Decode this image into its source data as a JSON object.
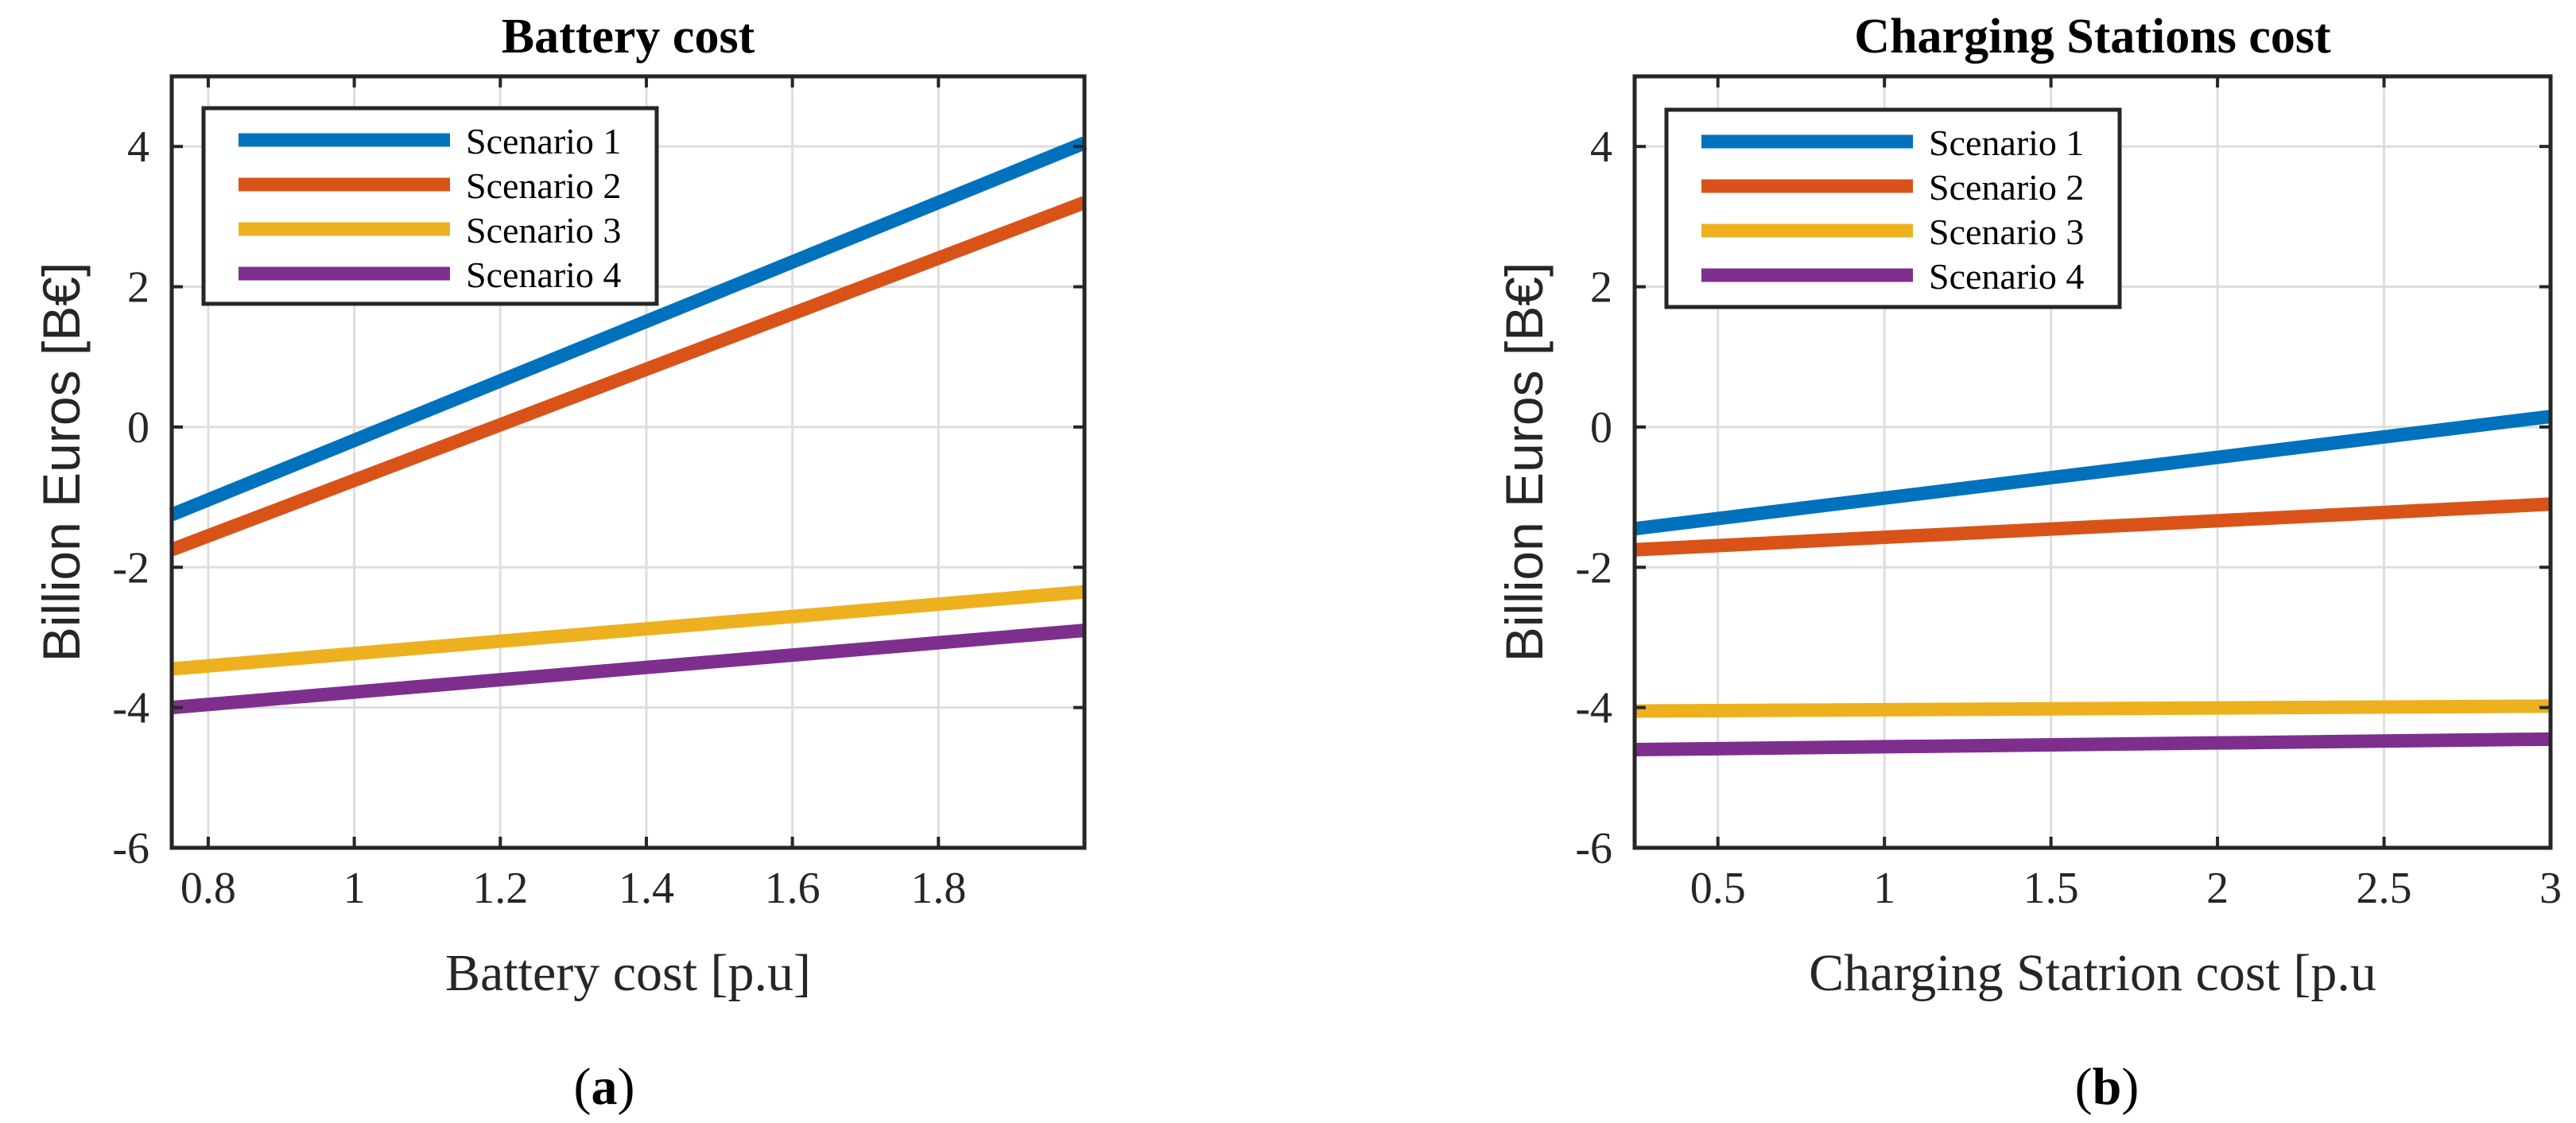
{
  "chart_data": [
    {
      "type": "line",
      "panel_label": "a",
      "title": "Battery cost",
      "xlabel": "Battery cost [p.u]",
      "ylabel": "Billion Euros [B€]",
      "xlim": [
        0.75,
        2.0
      ],
      "ylim": [
        -6,
        5
      ],
      "xticks": [
        0.8,
        1,
        1.2,
        1.4,
        1.6,
        1.8
      ],
      "xtick_labels": [
        "0.8",
        "1",
        "1.2",
        "1.4",
        "1.6",
        "1.8"
      ],
      "yticks": [
        -6,
        -4,
        -2,
        0,
        2,
        4
      ],
      "ytick_labels": [
        "-6",
        "-4",
        "-2",
        "0",
        "2",
        "4"
      ],
      "grid": true,
      "legend_location": "top-left",
      "series": [
        {
          "name": "Scenario 1",
          "color": "#0072BD",
          "x": [
            0.75,
            2.0
          ],
          "y": [
            -1.25,
            4.05
          ]
        },
        {
          "name": "Scenario 2",
          "color": "#D95319",
          "x": [
            0.75,
            2.0
          ],
          "y": [
            -1.75,
            3.2
          ]
        },
        {
          "name": "Scenario 3",
          "color": "#EDB120",
          "x": [
            0.75,
            2.0
          ],
          "y": [
            -3.45,
            -2.35
          ]
        },
        {
          "name": "Scenario 4",
          "color": "#7E2F8E",
          "x": [
            0.75,
            2.0
          ],
          "y": [
            -4.0,
            -2.9
          ]
        }
      ]
    },
    {
      "type": "line",
      "panel_label": "b",
      "title": "Charging Stations cost",
      "xlabel": "Charging Statrion cost [p.u",
      "ylabel": "Billion Euros [B€]",
      "xlim": [
        0.25,
        3.0
      ],
      "ylim": [
        -6,
        5
      ],
      "xticks": [
        0.5,
        1,
        1.5,
        2,
        2.5,
        3
      ],
      "xtick_labels": [
        "0.5",
        "1",
        "1.5",
        "2",
        "2.5",
        "3"
      ],
      "yticks": [
        -6,
        -4,
        -2,
        0,
        2,
        4
      ],
      "ytick_labels": [
        "-6",
        "-4",
        "-2",
        "0",
        "2",
        "4"
      ],
      "grid": true,
      "legend_location": "top-left",
      "series": [
        {
          "name": "Scenario 1",
          "color": "#0072BD",
          "x": [
            0.25,
            3.0
          ],
          "y": [
            -1.45,
            0.15
          ]
        },
        {
          "name": "Scenario 2",
          "color": "#D95319",
          "x": [
            0.25,
            3.0
          ],
          "y": [
            -1.75,
            -1.1
          ]
        },
        {
          "name": "Scenario 3",
          "color": "#EDB120",
          "x": [
            0.25,
            3.0
          ],
          "y": [
            -4.05,
            -3.98
          ]
        },
        {
          "name": "Scenario 4",
          "color": "#7E2F8E",
          "x": [
            0.25,
            3.0
          ],
          "y": [
            -4.6,
            -4.45
          ]
        }
      ]
    }
  ]
}
